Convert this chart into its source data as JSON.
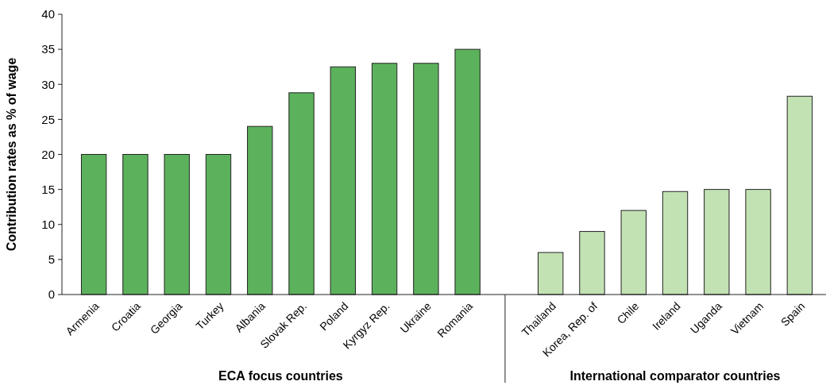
{
  "chart_data": {
    "type": "bar",
    "ylabel": "Contribution rates as % of wage",
    "categories": [
      "Armenia",
      "Croatia",
      "Georgia",
      "Turkey",
      "Albania",
      "Slovak Rep.",
      "Poland",
      "Kyrgyz Rep.",
      "Ukraine",
      "Romania",
      null,
      "Thailand",
      "Korea, Rep. of",
      "Chile",
      "Ireland",
      "Uganda",
      "Vietnam",
      "Spain"
    ],
    "values": [
      20,
      20,
      20,
      20,
      24,
      28.8,
      32.5,
      33,
      33,
      35,
      null,
      6,
      9,
      12,
      14.7,
      15,
      15,
      28.3
    ],
    "colors": [
      "#5cb25c",
      "#5cb25c",
      "#5cb25c",
      "#5cb25c",
      "#5cb25c",
      "#5cb25c",
      "#5cb25c",
      "#5cb25c",
      "#5cb25c",
      "#5cb25c",
      null,
      "#c3e2b4",
      "#c3e2b4",
      "#c3e2b4",
      "#c3e2b4",
      "#c3e2b4",
      "#c3e2b4",
      "#c3e2b4"
    ],
    "ylim": [
      0,
      40
    ],
    "yticks": [
      0,
      5,
      10,
      15,
      20,
      25,
      30,
      35,
      40
    ],
    "grid": false,
    "annotations": [
      "ECA focus countries",
      "International comparator countries"
    ]
  }
}
